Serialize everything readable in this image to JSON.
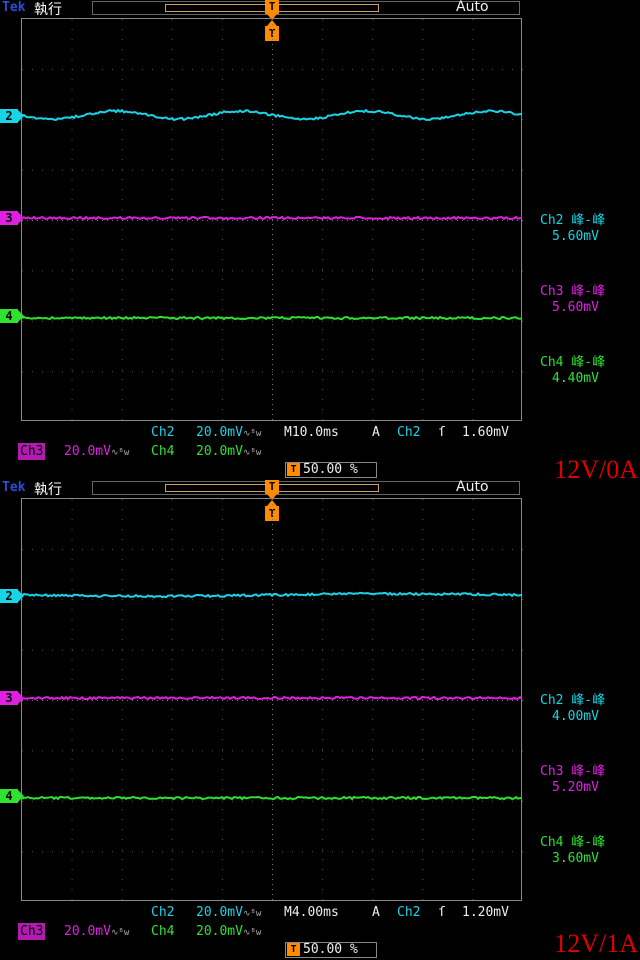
{
  "panels": [
    {
      "brand": "Tek",
      "run_state": "執行",
      "trigger_marker": "T",
      "trigger_mode": "Auto",
      "channel_markers": [
        "2",
        "3",
        "4"
      ],
      "measurements": [
        {
          "label": "Ch2 峰-峰",
          "value": "5.60mV",
          "color": "#19d4e6"
        },
        {
          "label": "Ch3 峰-峰",
          "value": "5.60mV",
          "color": "#e020e0"
        },
        {
          "label": "Ch4 峰-峰",
          "value": "4.40mV",
          "color": "#2ee22e"
        }
      ],
      "ch2": {
        "name": "Ch2",
        "scale": "20.0mV"
      },
      "ch3": {
        "name": "Ch3",
        "scale": "20.0mV"
      },
      "ch4": {
        "name": "Ch4",
        "scale": "20.0mV"
      },
      "timebase": "M10.0ms",
      "acq": "A",
      "trigger_source": "Ch2",
      "trigger_slope": "ſ",
      "trigger_level": "1.60mV",
      "trigger_position": "50.00 %",
      "condition": "12V/0A",
      "waves": {
        "ch2_ripple_cycles": 4,
        "ch2_ripple_amp": 0.5
      }
    },
    {
      "brand": "Tek",
      "run_state": "執行",
      "trigger_marker": "T",
      "trigger_mode": "Auto",
      "channel_markers": [
        "2",
        "3",
        "4"
      ],
      "measurements": [
        {
          "label": "Ch2 峰-峰",
          "value": "4.00mV",
          "color": "#19d4e6"
        },
        {
          "label": "Ch3 峰-峰",
          "value": "5.20mV",
          "color": "#e020e0"
        },
        {
          "label": "Ch4 峰-峰",
          "value": "3.60mV",
          "color": "#2ee22e"
        }
      ],
      "ch2": {
        "name": "Ch2",
        "scale": "20.0mV"
      },
      "ch3": {
        "name": "Ch3",
        "scale": "20.0mV"
      },
      "ch4": {
        "name": "Ch4",
        "scale": "20.0mV"
      },
      "timebase": "M4.00ms",
      "acq": "A",
      "trigger_source": "Ch2",
      "trigger_slope": "ſ",
      "trigger_level": "1.20mV",
      "trigger_position": "50.00 %",
      "condition": "12V/1A",
      "waves": {
        "ch2_ripple_cycles": 1,
        "ch2_ripple_amp": 0.15
      }
    }
  ],
  "colors": {
    "ch2": "#19d4e6",
    "ch3": "#e020e0",
    "ch4": "#2ee22e",
    "trigger": "#ff8c00",
    "condition": "#e00000"
  },
  "icons": {
    "bandwidth": "bw-limit-icon",
    "trigger": "trigger-t-icon"
  }
}
